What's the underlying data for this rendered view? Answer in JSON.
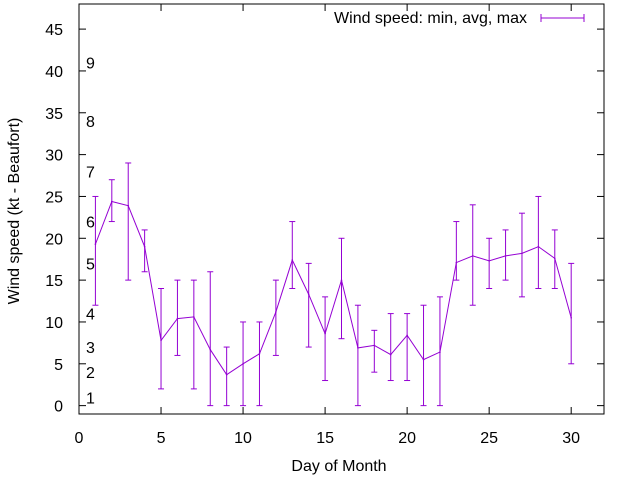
{
  "chart_data": {
    "type": "line",
    "xlabel": "Day of Month",
    "ylabel": "Wind speed (kt - Beaufort)",
    "xlim": [
      0,
      32
    ],
    "ylim": [
      -1,
      48
    ],
    "xticks": [
      0,
      5,
      10,
      15,
      20,
      25,
      30
    ],
    "yticks": [
      0,
      5,
      10,
      15,
      20,
      25,
      30,
      35,
      40,
      45
    ],
    "grid": false,
    "legend_position": "top-right",
    "color": "#9400d3",
    "beaufort_labels": [
      {
        "text": "1",
        "y": 1
      },
      {
        "text": "2",
        "y": 4
      },
      {
        "text": "3",
        "y": 7
      },
      {
        "text": "4",
        "y": 11
      },
      {
        "text": "5",
        "y": 17
      },
      {
        "text": "6",
        "y": 22
      },
      {
        "text": "7",
        "y": 28
      },
      {
        "text": "8",
        "y": 34
      },
      {
        "text": "9",
        "y": 41
      }
    ],
    "series": [
      {
        "name": "Wind speed: min, avg, max",
        "points": [
          {
            "x": 1,
            "avg": 19.3,
            "min": 12,
            "max": 25
          },
          {
            "x": 2,
            "avg": 24.4,
            "min": 22,
            "max": 27
          },
          {
            "x": 3,
            "avg": 23.9,
            "min": 15,
            "max": 29
          },
          {
            "x": 4,
            "avg": 19.0,
            "min": 16,
            "max": 21
          },
          {
            "x": 5,
            "avg": 7.8,
            "min": 2,
            "max": 14
          },
          {
            "x": 6,
            "avg": 10.4,
            "min": 6,
            "max": 15
          },
          {
            "x": 7,
            "avg": 10.6,
            "min": 2,
            "max": 15
          },
          {
            "x": 8,
            "avg": 6.7,
            "min": 0,
            "max": 16
          },
          {
            "x": 9,
            "avg": 3.7,
            "min": 0,
            "max": 7
          },
          {
            "x": 10,
            "avg": 5.0,
            "min": 0,
            "max": 10
          },
          {
            "x": 11,
            "avg": 6.2,
            "min": 0,
            "max": 10
          },
          {
            "x": 12,
            "avg": 11.2,
            "min": 6,
            "max": 15
          },
          {
            "x": 13,
            "avg": 17.4,
            "min": 14,
            "max": 22
          },
          {
            "x": 14,
            "avg": 13.3,
            "min": 7,
            "max": 17
          },
          {
            "x": 15,
            "avg": 8.6,
            "min": 3,
            "max": 13
          },
          {
            "x": 16,
            "avg": 15.0,
            "min": 8,
            "max": 20
          },
          {
            "x": 17,
            "avg": 6.9,
            "min": 0,
            "max": 12
          },
          {
            "x": 18,
            "avg": 7.2,
            "min": 4,
            "max": 9
          },
          {
            "x": 19,
            "avg": 6.1,
            "min": 3,
            "max": 11
          },
          {
            "x": 20,
            "avg": 8.4,
            "min": 3,
            "max": 11
          },
          {
            "x": 21,
            "avg": 5.5,
            "min": 0,
            "max": 12
          },
          {
            "x": 22,
            "avg": 6.4,
            "min": 0,
            "max": 13
          },
          {
            "x": 23,
            "avg": 17.1,
            "min": 15,
            "max": 22
          },
          {
            "x": 24,
            "avg": 17.9,
            "min": 12,
            "max": 24
          },
          {
            "x": 25,
            "avg": 17.3,
            "min": 14,
            "max": 20
          },
          {
            "x": 26,
            "avg": 17.9,
            "min": 15,
            "max": 21
          },
          {
            "x": 27,
            "avg": 18.2,
            "min": 13,
            "max": 23
          },
          {
            "x": 28,
            "avg": 19.0,
            "min": 14,
            "max": 25
          },
          {
            "x": 29,
            "avg": 17.6,
            "min": 14,
            "max": 21
          },
          {
            "x": 30,
            "avg": 10.5,
            "min": 5,
            "max": 17
          }
        ]
      }
    ]
  }
}
